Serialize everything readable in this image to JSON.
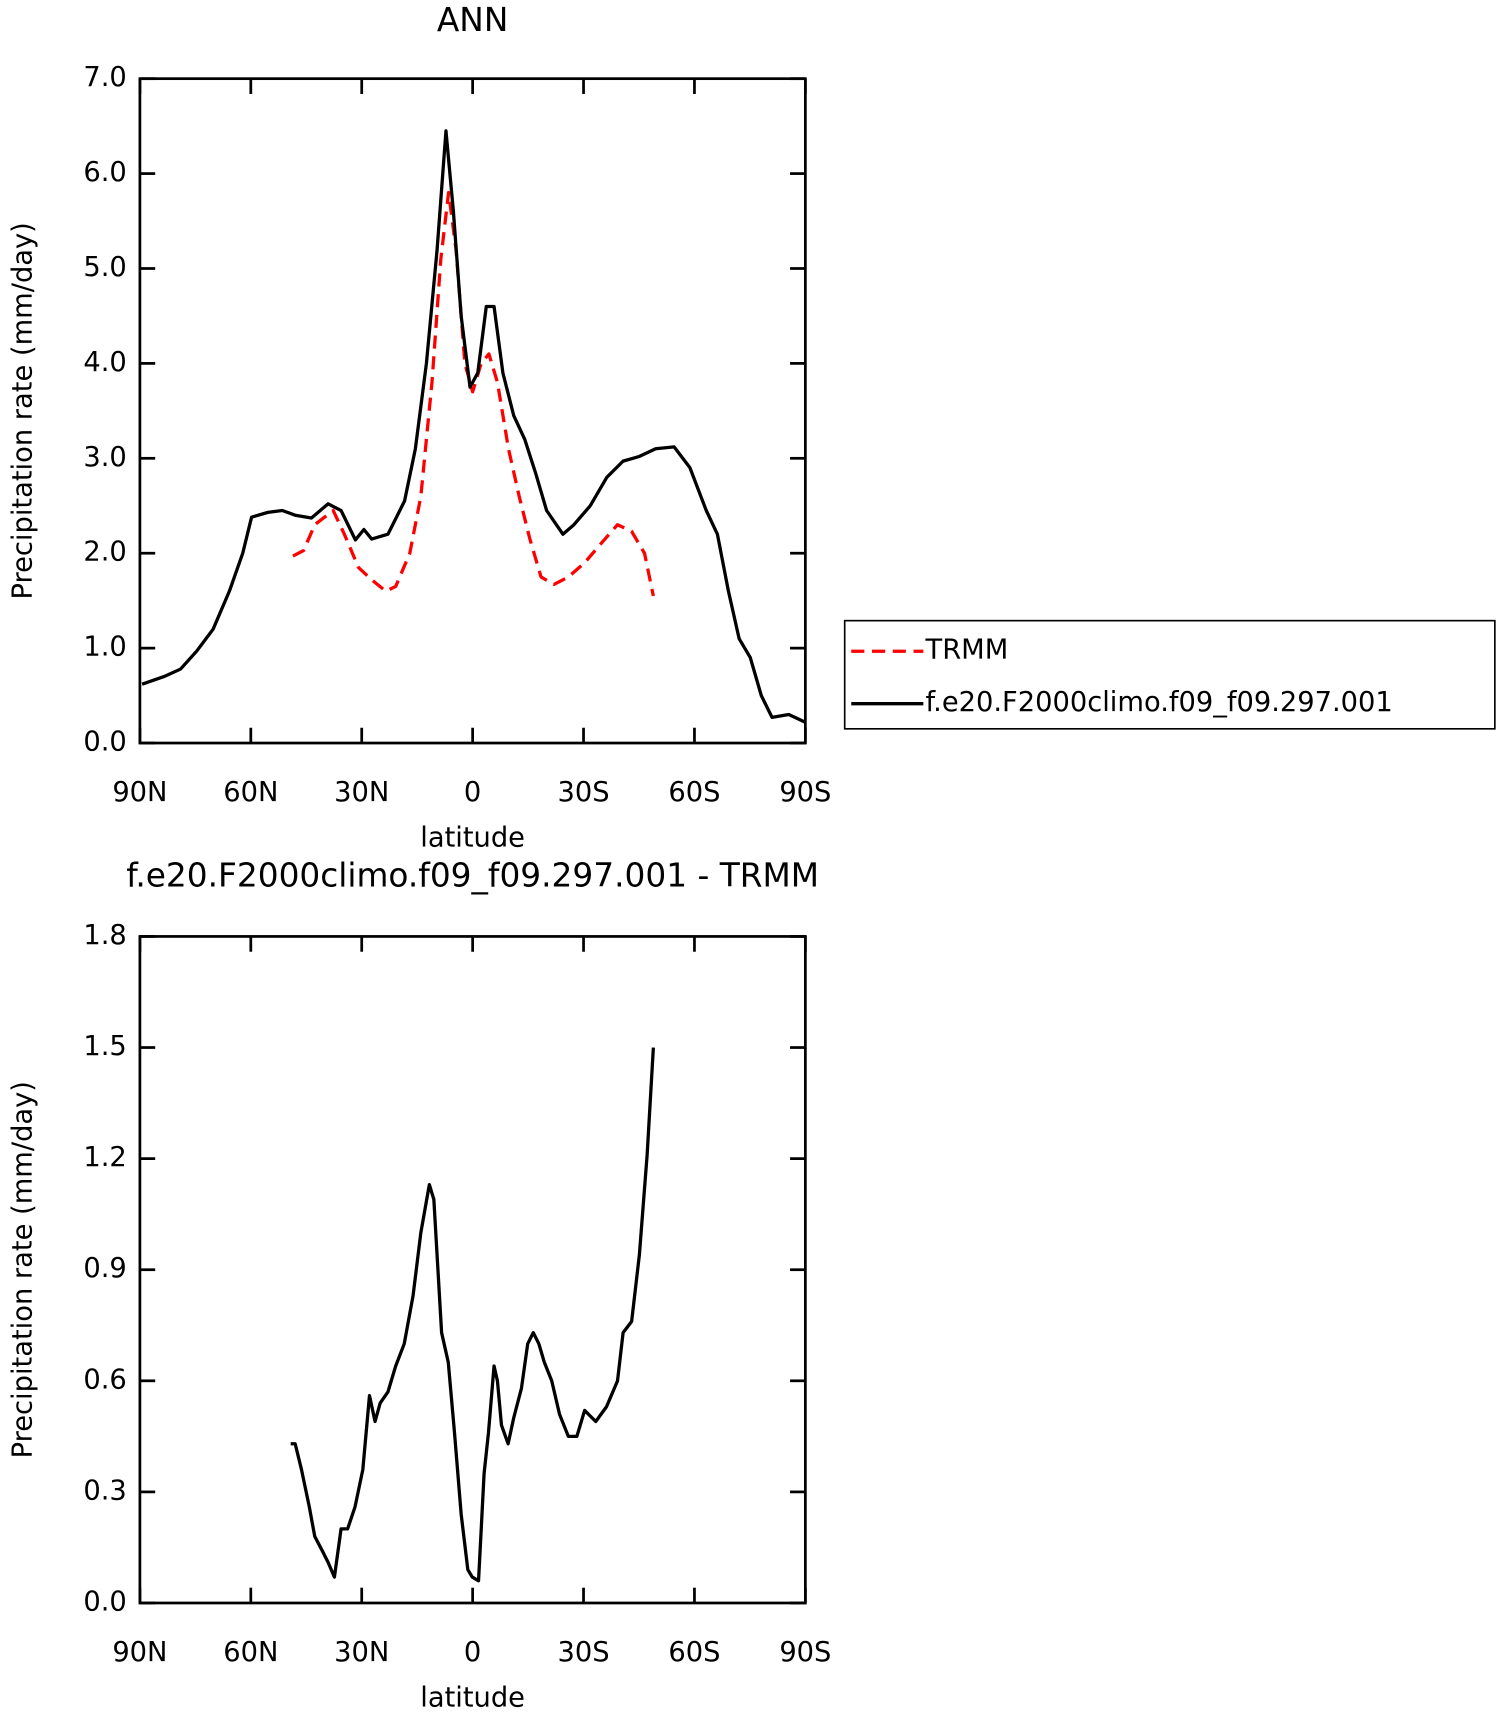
{
  "chart_data": [
    {
      "type": "line",
      "title": "ANN",
      "xlabel": "latitude",
      "ylabel": "Precipitation rate (mm/day)",
      "xlim": [
        90,
        -90
      ],
      "xticks": [
        {
          "value": 90,
          "label": "90N"
        },
        {
          "value": 60,
          "label": "60N"
        },
        {
          "value": 30,
          "label": "30N"
        },
        0,
        {
          "value": -30,
          "label": "30S"
        },
        {
          "value": -60,
          "label": "60S"
        },
        {
          "value": -90,
          "label": "90S"
        }
      ],
      "ylim": [
        0,
        7
      ],
      "yticks": [
        {
          "value": 0,
          "label": "0.0"
        },
        {
          "value": 1,
          "label": "1.0"
        },
        {
          "value": 2,
          "label": "2.0"
        },
        {
          "value": 3,
          "label": "3.0"
        },
        {
          "value": 4,
          "label": "4.0"
        },
        {
          "value": 5,
          "label": "5.0"
        },
        {
          "value": 6,
          "label": "6.0"
        },
        {
          "value": 7,
          "label": "7.0"
        }
      ],
      "legend": "outside-right",
      "series": [
        {
          "name": "TRMM",
          "color": "#ff0000",
          "dashed": true,
          "x": [
            48.6,
            45.7,
            42.7,
            37.7,
            34.7,
            30.9,
            27.3,
            23.5,
            20.8,
            17,
            14,
            11,
            8.6,
            6.5,
            4.5,
            2.1,
            0,
            -2.3,
            -4.4,
            -6.7,
            -9.7,
            -12.6,
            -15.5,
            -18.5,
            -22,
            -25.9,
            -30.3,
            -34.7,
            -39.2,
            -43,
            -46.5,
            -48.9
          ],
          "values": [
            1.97,
            2.03,
            2.3,
            2.45,
            2.2,
            1.85,
            1.72,
            1.6,
            1.65,
            2.0,
            2.6,
            3.8,
            5.1,
            5.8,
            5.2,
            4.0,
            3.7,
            4.0,
            4.1,
            3.8,
            3.1,
            2.6,
            2.15,
            1.75,
            1.67,
            1.75,
            1.9,
            2.1,
            2.3,
            2.23,
            2.0,
            1.55
          ]
        },
        {
          "name": "f.e20.F2000climo.f09_f09.297.001",
          "color": "#000000",
          "dashed": false,
          "x": [
            89.4,
            83.5,
            79,
            74.6,
            70.2,
            65.8,
            62.2,
            59.8,
            55.4,
            51.5,
            48,
            43.6,
            39.1,
            35.6,
            31.7,
            29.4,
            27.3,
            22.9,
            18.4,
            15.5,
            12.5,
            9.6,
            7.2,
            5.2,
            3.1,
            0.7,
            -1.4,
            -3.7,
            -5.8,
            -8.2,
            -11.1,
            -14.1,
            -17,
            -20,
            -24.4,
            -27.4,
            -31.8,
            -36.3,
            -40.7,
            -45.1,
            -49.5,
            -54.5,
            -58.8,
            -63.2,
            -66.2,
            -69.2,
            -72.1,
            -75.1,
            -78.1,
            -81,
            -85.5,
            -89.9
          ],
          "values": [
            0.62,
            0.7,
            0.78,
            0.97,
            1.2,
            1.6,
            2.0,
            2.38,
            2.43,
            2.45,
            2.4,
            2.37,
            2.52,
            2.45,
            2.14,
            2.25,
            2.15,
            2.2,
            2.55,
            3.1,
            4.0,
            5.2,
            6.45,
            5.6,
            4.5,
            3.75,
            3.9,
            4.6,
            4.6,
            3.9,
            3.45,
            3.2,
            2.85,
            2.45,
            2.2,
            2.3,
            2.5,
            2.8,
            2.97,
            3.02,
            3.1,
            3.12,
            2.9,
            2.45,
            2.2,
            1.6,
            1.1,
            0.9,
            0.5,
            0.27,
            0.3,
            0.22
          ]
        }
      ]
    },
    {
      "type": "line",
      "title": "f.e20.F2000climo.f09_f09.297.001 - TRMM",
      "xlabel": "latitude",
      "ylabel": "Precipitation rate (mm/day)",
      "xlim": [
        90,
        -90
      ],
      "xticks": [
        {
          "value": 90,
          "label": "90N"
        },
        {
          "value": 60,
          "label": "60N"
        },
        {
          "value": 30,
          "label": "30N"
        },
        0,
        {
          "value": -30,
          "label": "30S"
        },
        {
          "value": -60,
          "label": "60S"
        },
        {
          "value": -90,
          "label": "90S"
        }
      ],
      "ylim": [
        0,
        1.8
      ],
      "yticks": [
        {
          "value": 0,
          "label": "0.0"
        },
        0.3,
        0.6,
        0.9,
        1.2,
        1.5,
        1.8
      ],
      "color": "#000000",
      "x": [
        49.2,
        48,
        46.3,
        44.2,
        42.7,
        40.6,
        39.1,
        37.4,
        35.6,
        33.8,
        31.8,
        29.7,
        27.9,
        26.4,
        25,
        22.9,
        20.8,
        18.5,
        16.1,
        14,
        11.7,
        10.5,
        8.4,
        6.6,
        4.9,
        3.1,
        1.3,
        0.1,
        -1.6,
        -3.1,
        -4.3,
        -5.8,
        -6.7,
        -7.8,
        -9.6,
        -11.1,
        -13.2,
        -14.9,
        -16.4,
        -17.9,
        -19.4,
        -21.4,
        -23.5,
        -25.9,
        -28.2,
        -30.3,
        -33.3,
        -36.2,
        -39.2,
        -40.7,
        -43,
        -45.1,
        -47.2,
        -48.9
      ],
      "values": [
        0.43,
        0.43,
        0.36,
        0.26,
        0.18,
        0.14,
        0.11,
        0.07,
        0.2,
        0.2,
        0.26,
        0.36,
        0.56,
        0.49,
        0.54,
        0.57,
        0.64,
        0.7,
        0.83,
        1.0,
        1.13,
        1.09,
        0.73,
        0.65,
        0.46,
        0.24,
        0.09,
        0.07,
        0.06,
        0.35,
        0.46,
        0.64,
        0.6,
        0.48,
        0.43,
        0.5,
        0.58,
        0.7,
        0.73,
        0.7,
        0.65,
        0.6,
        0.51,
        0.45,
        0.45,
        0.52,
        0.49,
        0.53,
        0.6,
        0.73,
        0.76,
        0.94,
        1.21,
        1.5
      ]
    }
  ]
}
